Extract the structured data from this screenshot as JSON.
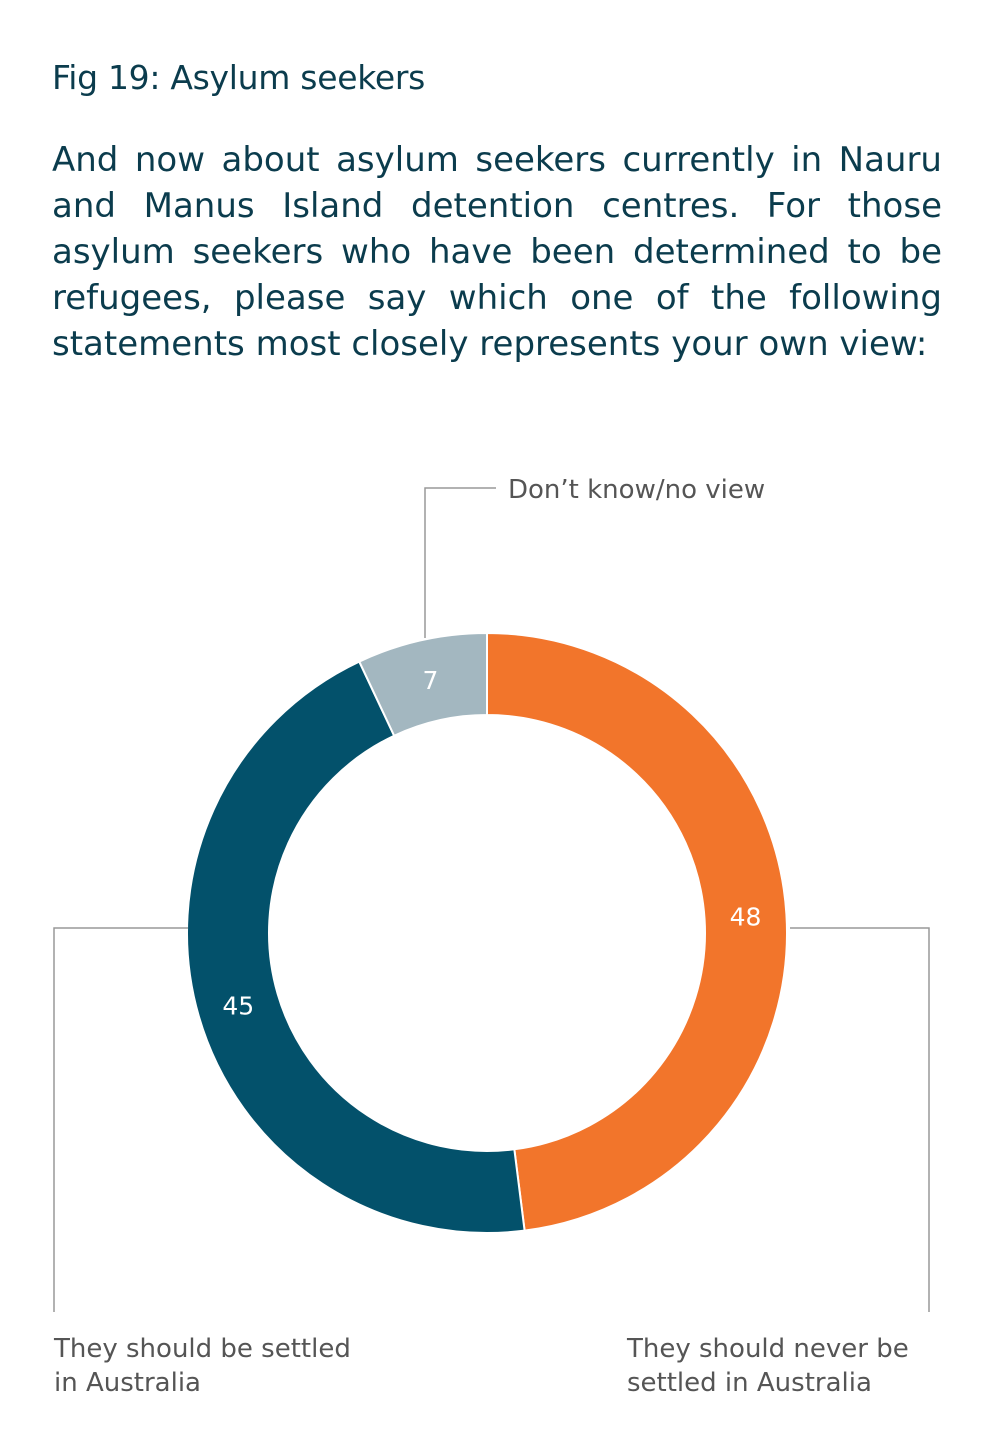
{
  "title": "Fig 19: Asylum seekers",
  "question": "And now about asylum seekers currently in Nauru and Manus Island detention centres. For those asylum seekers who have been determined to be refugees, please say which one of the following statements most closely represents your own view:",
  "chart_data": {
    "type": "pie",
    "variant": "donut",
    "start": "top, clockwise",
    "slices": [
      {
        "label": "They should never be settled in Australia",
        "label_lines": [
          "They should never be",
          "settled in Australia"
        ],
        "value": 48,
        "color": "#f2752b"
      },
      {
        "label": "They should be settled in Australia",
        "label_lines": [
          "They should be settled",
          "in Australia"
        ],
        "value": 45,
        "color": "#03516b"
      },
      {
        "label": "Don’t know/no view",
        "label_lines": [
          "Don’t know/no view"
        ],
        "value": 7,
        "color": "#a3b7c0"
      }
    ]
  }
}
